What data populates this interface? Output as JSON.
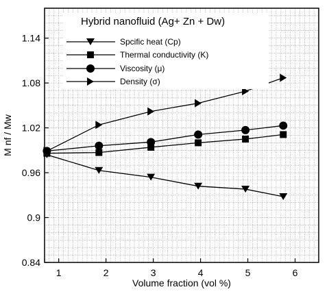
{
  "chart_data": {
    "type": "line",
    "title": "",
    "xlabel": "Volume fraction  (vol %)",
    "ylabel": "M nf / Mw",
    "xlim": [
      0.7,
      6.5
    ],
    "ylim": [
      0.84,
      1.18
    ],
    "x_ticks": [
      1,
      2,
      3,
      4,
      5,
      6
    ],
    "y_ticks": [
      0.84,
      0.9,
      0.96,
      1.02,
      1.08,
      1.14
    ],
    "y_tick_labels": [
      "0.84",
      "0.9",
      "0.96",
      "1.02",
      "1.08",
      "1.14"
    ],
    "grid": true,
    "legend": {
      "title": "Hybrid nanofluid (Ag+ Zn + Dw)",
      "placement": "top-left"
    },
    "series": [
      {
        "name": "Spcific heat (Cp)",
        "marker": "triangle-down",
        "x": [
          0.75,
          1.85,
          2.95,
          3.95,
          4.95,
          5.75
        ],
        "values": [
          0.984,
          0.963,
          0.954,
          0.942,
          0.938,
          0.928
        ]
      },
      {
        "name": "Thermal conductivity (K)",
        "marker": "square",
        "x": [
          0.75,
          1.85,
          2.95,
          3.95,
          4.95,
          5.75
        ],
        "values": [
          0.986,
          0.987,
          0.994,
          1.0,
          1.005,
          1.011
        ]
      },
      {
        "name": "Viscosity (μ)",
        "marker": "circle",
        "x": [
          0.75,
          1.85,
          2.95,
          3.95,
          4.95,
          5.75
        ],
        "values": [
          0.989,
          0.996,
          1.001,
          1.011,
          1.017,
          1.023
        ]
      },
      {
        "name": "Density (σ)",
        "marker": "triangle-right",
        "x": [
          0.75,
          1.85,
          2.95,
          3.95,
          4.95,
          5.75
        ],
        "values": [
          0.989,
          1.024,
          1.042,
          1.053,
          1.069,
          1.087
        ]
      }
    ]
  }
}
